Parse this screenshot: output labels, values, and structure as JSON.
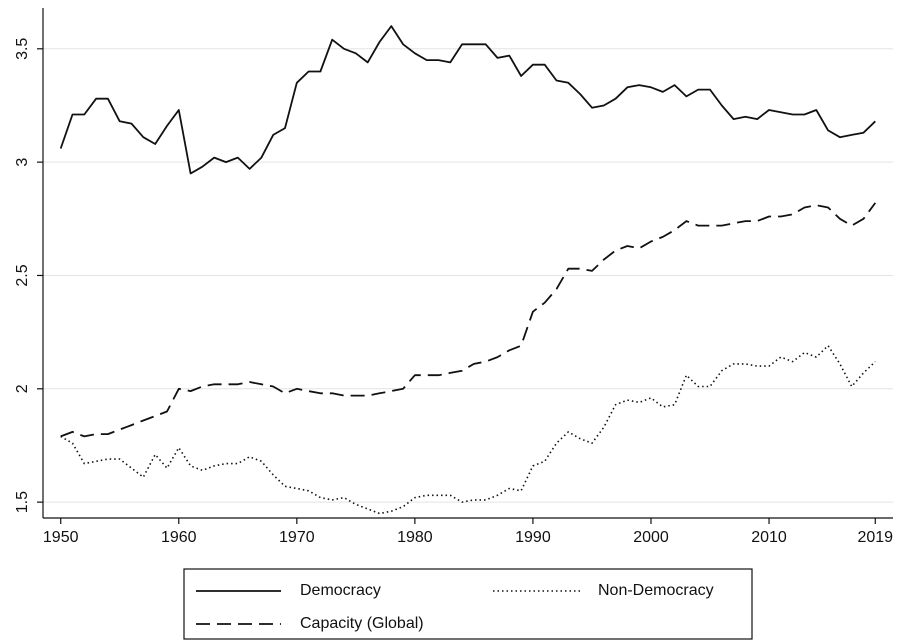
{
  "chart_data": {
    "type": "line",
    "title": "",
    "xlabel": "",
    "ylabel": "",
    "xlim": [
      1948.5,
      2020.5
    ],
    "ylim": [
      1.43,
      3.68
    ],
    "grid": true,
    "legend_position": "bottom",
    "x_ticks": [
      {
        "value": 1950,
        "label": "1950"
      },
      {
        "value": 1960,
        "label": "1960"
      },
      {
        "value": 1970,
        "label": "1970"
      },
      {
        "value": 1980,
        "label": "1980"
      },
      {
        "value": 1990,
        "label": "1990"
      },
      {
        "value": 2000,
        "label": "2000"
      },
      {
        "value": 2010,
        "label": "2010"
      },
      {
        "value": 2019,
        "label": "2019"
      }
    ],
    "y_ticks": [
      {
        "value": 1.5,
        "label": "1.5"
      },
      {
        "value": 2,
        "label": "2"
      },
      {
        "value": 2.5,
        "label": "2.5"
      },
      {
        "value": 3,
        "label": "3"
      },
      {
        "value": 3.5,
        "label": "3.5"
      }
    ],
    "x": [
      1950,
      1951,
      1952,
      1953,
      1954,
      1955,
      1956,
      1957,
      1958,
      1959,
      1960,
      1961,
      1962,
      1963,
      1964,
      1965,
      1966,
      1967,
      1968,
      1969,
      1970,
      1971,
      1972,
      1973,
      1974,
      1975,
      1976,
      1977,
      1978,
      1979,
      1980,
      1981,
      1982,
      1983,
      1984,
      1985,
      1986,
      1987,
      1988,
      1989,
      1990,
      1991,
      1992,
      1993,
      1994,
      1995,
      1996,
      1997,
      1998,
      1999,
      2000,
      2001,
      2002,
      2003,
      2004,
      2005,
      2006,
      2007,
      2008,
      2009,
      2010,
      2011,
      2012,
      2013,
      2014,
      2015,
      2016,
      2017,
      2018,
      2019
    ],
    "series": [
      {
        "name": "Democracy",
        "style": "solid",
        "values": [
          3.06,
          3.21,
          3.21,
          3.28,
          3.28,
          3.18,
          3.17,
          3.11,
          3.08,
          3.16,
          3.23,
          2.95,
          2.98,
          3.02,
          3.0,
          3.02,
          2.97,
          3.02,
          3.12,
          3.15,
          3.35,
          3.4,
          3.4,
          3.54,
          3.5,
          3.48,
          3.44,
          3.53,
          3.6,
          3.52,
          3.48,
          3.45,
          3.45,
          3.44,
          3.52,
          3.52,
          3.52,
          3.46,
          3.47,
          3.38,
          3.43,
          3.43,
          3.36,
          3.35,
          3.3,
          3.24,
          3.25,
          3.28,
          3.33,
          3.34,
          3.33,
          3.31,
          3.34,
          3.29,
          3.32,
          3.32,
          3.25,
          3.19,
          3.2,
          3.19,
          3.23,
          3.22,
          3.21,
          3.21,
          3.23,
          3.14,
          3.11,
          3.12,
          3.13,
          3.18
        ]
      },
      {
        "name": "Non-Democracy",
        "style": "dotted",
        "values": [
          1.79,
          1.76,
          1.67,
          1.68,
          1.69,
          1.69,
          1.65,
          1.61,
          1.71,
          1.65,
          1.74,
          1.66,
          1.64,
          1.66,
          1.67,
          1.67,
          1.7,
          1.68,
          1.62,
          1.57,
          1.56,
          1.55,
          1.52,
          1.51,
          1.52,
          1.49,
          1.47,
          1.45,
          1.46,
          1.48,
          1.52,
          1.53,
          1.53,
          1.53,
          1.5,
          1.51,
          1.51,
          1.53,
          1.56,
          1.55,
          1.66,
          1.68,
          1.76,
          1.81,
          1.78,
          1.76,
          1.83,
          1.93,
          1.95,
          1.94,
          1.96,
          1.92,
          1.93,
          2.06,
          2.01,
          2.01,
          2.08,
          2.11,
          2.11,
          2.1,
          2.1,
          2.14,
          2.12,
          2.16,
          2.14,
          2.19,
          2.11,
          2.01,
          2.07,
          2.12
        ]
      },
      {
        "name": "Capacity (Global)",
        "style": "dashed",
        "values": [
          1.79,
          1.81,
          1.79,
          1.8,
          1.8,
          1.82,
          1.84,
          1.86,
          1.88,
          1.9,
          2.0,
          1.99,
          2.01,
          2.02,
          2.02,
          2.02,
          2.03,
          2.02,
          2.01,
          1.98,
          2.0,
          1.99,
          1.98,
          1.98,
          1.97,
          1.97,
          1.97,
          1.98,
          1.99,
          2.0,
          2.06,
          2.06,
          2.06,
          2.07,
          2.08,
          2.11,
          2.12,
          2.14,
          2.17,
          2.19,
          2.34,
          2.38,
          2.44,
          2.53,
          2.53,
          2.52,
          2.57,
          2.61,
          2.63,
          2.62,
          2.65,
          2.67,
          2.7,
          2.74,
          2.72,
          2.72,
          2.72,
          2.73,
          2.74,
          2.74,
          2.76,
          2.76,
          2.77,
          2.8,
          2.81,
          2.8,
          2.75,
          2.72,
          2.75,
          2.82
        ]
      }
    ]
  },
  "legend": {
    "items": [
      {
        "label": "Democracy",
        "style": "solid"
      },
      {
        "label": "Non-Democracy",
        "style": "dotted"
      },
      {
        "label": "Capacity (Global)",
        "style": "dashed"
      }
    ]
  },
  "colors": {
    "line": "#111111",
    "grid": "#e3e3e3",
    "axis": "#111111",
    "background": "#ffffff"
  }
}
